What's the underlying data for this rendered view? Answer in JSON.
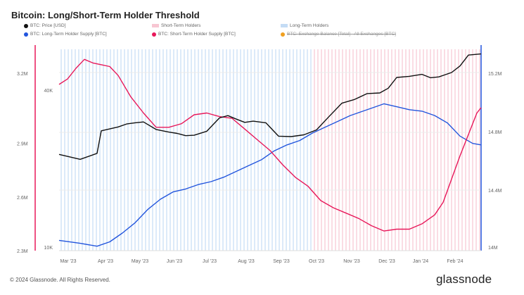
{
  "header": {
    "title": "Bitcoin: Long/Short-Term Holder Threshold"
  },
  "legend": [
    {
      "label": "BTC: Price [USD]",
      "color": "#111111",
      "kind": "dot",
      "struck": false
    },
    {
      "label": "Short-Term Holders",
      "color": "#f7c6d2",
      "kind": "swatch",
      "struck": false
    },
    {
      "label": "Long-Term Holders",
      "color": "#c4dcf5",
      "kind": "swatch",
      "struck": false
    },
    {
      "label": "BTC: Long-Term Holder Supply [BTC]",
      "color": "#2255dd",
      "kind": "dot",
      "struck": false
    },
    {
      "label": "BTC: Short-Term Holder Supply [BTC]",
      "color": "#e8185a",
      "kind": "dot",
      "struck": false
    },
    {
      "label": "BTC: Exchange Balance [Total] - All Exchanges [BTC]",
      "color": "#f0a020",
      "kind": "dot",
      "struck": true
    }
  ],
  "footer": {
    "copyright": "© 2024 Glassnode. All Rights Reserved.",
    "brand": "glassnode"
  },
  "chart_data": {
    "type": "line",
    "x_ticks": [
      "Mar '23",
      "Apr '23",
      "May '23",
      "Jun '23",
      "Jul '23",
      "Aug '23",
      "Sep '23",
      "Oct '23",
      "Nov '23",
      "Dec '23",
      "Jan '24",
      "Feb '24"
    ],
    "y_left_ticks": [
      "2.3M",
      "2.6M",
      "2.9M",
      "3.2M"
    ],
    "y_left_range": [
      2300000,
      3450000
    ],
    "y_price_ticks": [
      "10K",
      "40K"
    ],
    "y_right_ticks": [
      "14M",
      "14.4M",
      "14.8M",
      "15.2M"
    ],
    "y_right_range": [
      14000000,
      15400000
    ],
    "background_bands": [
      {
        "name": "Long-Term Holders",
        "from": 0,
        "to": 0.6,
        "color": "#c4dcf5"
      },
      {
        "name": "Short-Term Holders",
        "from": 0.6,
        "to": 1.0,
        "color": "#f7c6d2"
      }
    ],
    "series": [
      {
        "name": "BTC: Price [USD]",
        "axis": "price",
        "color": "#111111",
        "x": [
          0,
          0.05,
          0.09,
          0.1,
          0.14,
          0.16,
          0.18,
          0.2,
          0.23,
          0.26,
          0.28,
          0.3,
          0.32,
          0.35,
          0.38,
          0.4,
          0.42,
          0.44,
          0.46,
          0.49,
          0.52,
          0.55,
          0.58,
          0.61,
          0.64,
          0.67,
          0.7,
          0.73,
          0.76,
          0.78,
          0.8,
          0.83,
          0.86,
          0.88,
          0.9,
          0.93,
          0.95,
          0.97,
          1.0
        ],
        "y": [
          22400,
          21500,
          22600,
          27300,
          28200,
          28900,
          29200,
          29400,
          27600,
          27000,
          26700,
          26200,
          26300,
          27200,
          30400,
          31000,
          30100,
          29300,
          29600,
          29200,
          26100,
          26000,
          26400,
          27500,
          30800,
          34400,
          35500,
          37300,
          37500,
          39000,
          42700,
          43100,
          43800,
          42600,
          42900,
          44500,
          47000,
          51500,
          52000
        ]
      },
      {
        "name": "BTC: Long-Term Holder Supply [BTC]",
        "axis": "right",
        "color": "#2255dd",
        "x": [
          0,
          0.05,
          0.09,
          0.12,
          0.15,
          0.18,
          0.21,
          0.24,
          0.27,
          0.3,
          0.33,
          0.36,
          0.39,
          0.42,
          0.45,
          0.48,
          0.51,
          0.54,
          0.57,
          0.6,
          0.63,
          0.66,
          0.69,
          0.72,
          0.75,
          0.77,
          0.8,
          0.83,
          0.86,
          0.89,
          0.92,
          0.95,
          0.98,
          1.0
        ],
        "y": [
          14070000,
          14050000,
          14030000,
          14060000,
          14120000,
          14190000,
          14280000,
          14350000,
          14400000,
          14420000,
          14450000,
          14470000,
          14500000,
          14540000,
          14580000,
          14620000,
          14680000,
          14720000,
          14750000,
          14800000,
          14840000,
          14880000,
          14920000,
          14950000,
          14980000,
          15000000,
          14980000,
          14960000,
          14950000,
          14920000,
          14870000,
          14780000,
          14730000,
          14720000
        ]
      },
      {
        "name": "BTC: Short-Term Holder Supply [BTC]",
        "axis": "left",
        "color": "#e8185a",
        "x": [
          0,
          0.02,
          0.04,
          0.06,
          0.08,
          0.1,
          0.12,
          0.14,
          0.17,
          0.2,
          0.23,
          0.26,
          0.29,
          0.32,
          0.35,
          0.38,
          0.41,
          0.44,
          0.47,
          0.5,
          0.53,
          0.56,
          0.59,
          0.62,
          0.65,
          0.68,
          0.71,
          0.74,
          0.77,
          0.8,
          0.83,
          0.86,
          0.89,
          0.91,
          0.93,
          0.95,
          0.97,
          0.99,
          1.0
        ],
        "y": [
          3230000,
          3260000,
          3320000,
          3370000,
          3350000,
          3340000,
          3330000,
          3280000,
          3160000,
          3070000,
          2990000,
          2990000,
          3010000,
          3060000,
          3070000,
          3050000,
          3040000,
          2980000,
          2920000,
          2860000,
          2780000,
          2710000,
          2660000,
          2580000,
          2540000,
          2510000,
          2480000,
          2440000,
          2410000,
          2420000,
          2420000,
          2450000,
          2500000,
          2570000,
          2700000,
          2830000,
          2950000,
          3070000,
          3100000
        ]
      }
    ]
  }
}
